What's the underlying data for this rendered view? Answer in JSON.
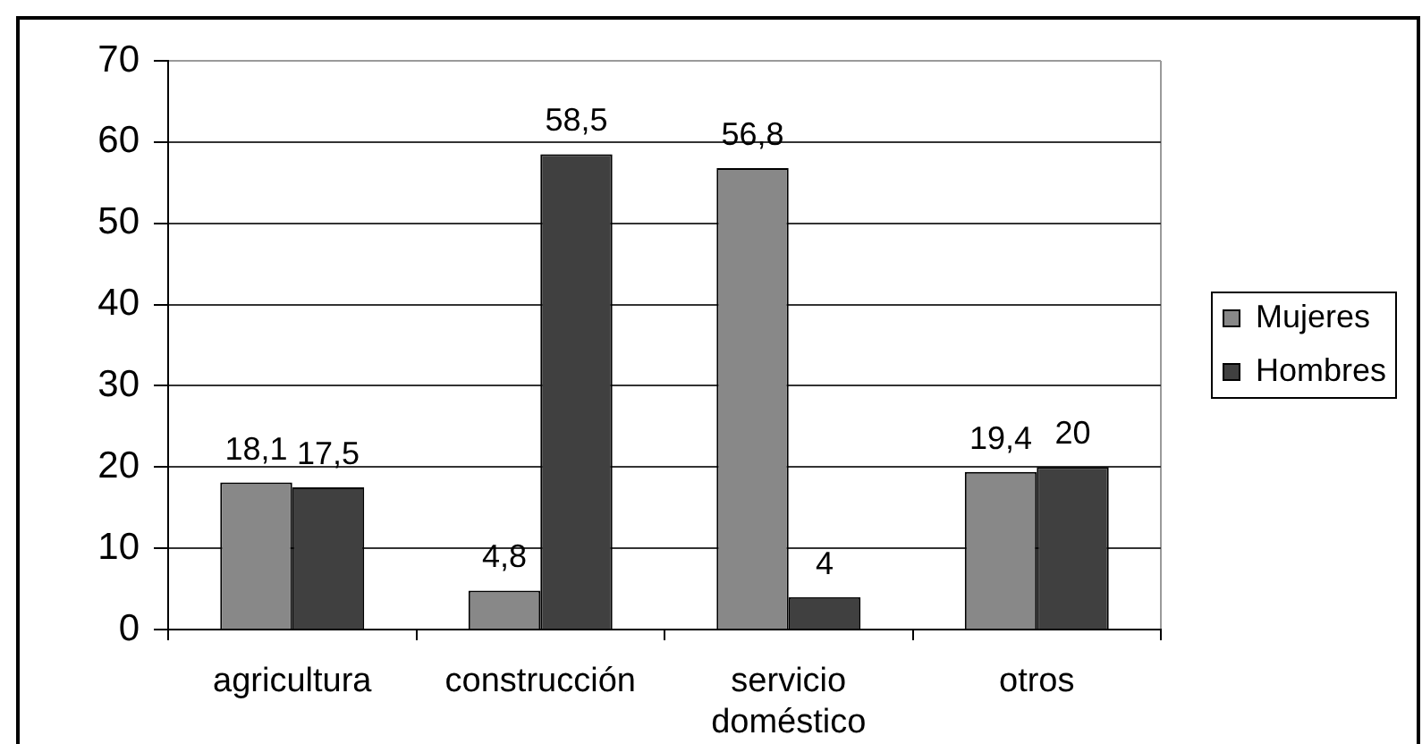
{
  "chart_data": {
    "type": "bar",
    "categories": [
      "agricultura",
      "construcción",
      "servicio doméstico",
      "otros"
    ],
    "series": [
      {
        "name": "Mujeres",
        "color": "#888888",
        "values": [
          18.1,
          4.8,
          56.8,
          19.4
        ],
        "value_labels": [
          "18,1",
          "4,8",
          "56,8",
          "19,4"
        ]
      },
      {
        "name": "Hombres",
        "color": "#404040",
        "values": [
          17.5,
          58.5,
          4,
          20
        ],
        "value_labels": [
          "17,5",
          "58,5",
          "4",
          "20"
        ]
      }
    ],
    "ylim": [
      0,
      70
    ],
    "yticks": [
      0,
      10,
      20,
      30,
      40,
      50,
      60,
      70
    ],
    "grid": "y",
    "legend": "right"
  }
}
